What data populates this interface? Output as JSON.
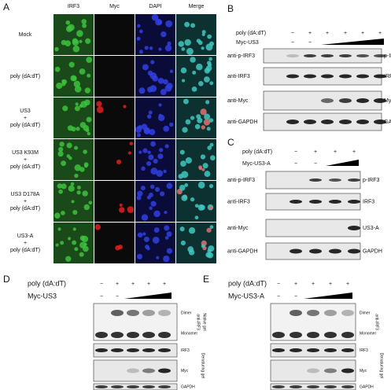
{
  "panel_a": {
    "label": "A",
    "columns": [
      "IRF3",
      "Myc",
      "DAPI",
      "Merge"
    ],
    "rows": [
      [
        "Mock"
      ],
      [
        "poly (dA:dT)"
      ],
      [
        "US3",
        "+",
        "poly (dA:dT)"
      ],
      [
        "US3 K93M",
        "+",
        "poly (dA:dT)"
      ],
      [
        "US3 D178A",
        "+",
        "poly (dA:dT)"
      ],
      [
        "US3-A",
        "+",
        "poly (dA:dT)"
      ]
    ]
  },
  "panel_b": {
    "label": "B",
    "treatments": [
      {
        "name": "poly (dA:dT)",
        "signs": [
          "−",
          "+",
          "+",
          "+",
          "+",
          "+"
        ]
      },
      {
        "name": "Myc-US3",
        "signs": [
          "−",
          "−"
        ]
      }
    ],
    "blots": [
      {
        "antibody": "anti-p-IRF3",
        "target": "p-IRF3"
      },
      {
        "antibody": "anti-IRF3",
        "target": "IRF3"
      },
      {
        "antibody": "anti-Myc",
        "target": "Myc-US3"
      },
      {
        "antibody": "anti-GAPDH",
        "target": "GAPDH"
      }
    ]
  },
  "panel_c": {
    "label": "C",
    "treatments": [
      {
        "name": "poly (dA:dT)",
        "signs": [
          "−",
          "+",
          "+",
          "+"
        ]
      },
      {
        "name": "Myc-US3-A",
        "signs": [
          "−",
          "−"
        ]
      }
    ],
    "blots": [
      {
        "antibody": "anti-p-IRF3",
        "target": "p-IRF3"
      },
      {
        "antibody": "anti-IRF3",
        "target": "IRF3"
      },
      {
        "antibody": "anti-Myc",
        "target": "US3-A"
      },
      {
        "antibody": "anti-GAPDH",
        "target": "GAPDH"
      }
    ]
  },
  "panel_d": {
    "label": "D",
    "treatments": [
      {
        "name": "poly (dA:dT)",
        "signs": [
          "−",
          "+",
          "+",
          "+",
          "+"
        ]
      },
      {
        "name": "Myc-US3",
        "signs": [
          "−",
          "−"
        ]
      }
    ],
    "native": {
      "bands": [
        "Dimer",
        "Monomer"
      ],
      "antibody": "anti-IRF3",
      "gel": "Native gel"
    },
    "denaturing": {
      "blots": [
        "IRF3",
        "Myc",
        "GAPDH"
      ],
      "gel": "Denaturing gel"
    }
  },
  "panel_e": {
    "label": "E",
    "treatments": [
      {
        "name": "poly (dA:dT)",
        "signs": [
          "−",
          "+",
          "+",
          "+",
          "+"
        ]
      },
      {
        "name": "Myc-US3-A",
        "signs": [
          "−",
          "−"
        ]
      }
    ],
    "native": {
      "bands": [
        "Dimer",
        "Monomer"
      ],
      "antibody": "anti-IRF3"
    },
    "denaturing": {
      "blots": [
        "IRF3",
        "Myc",
        "GAPDH"
      ],
      "gel": "Denaturing gel"
    }
  }
}
